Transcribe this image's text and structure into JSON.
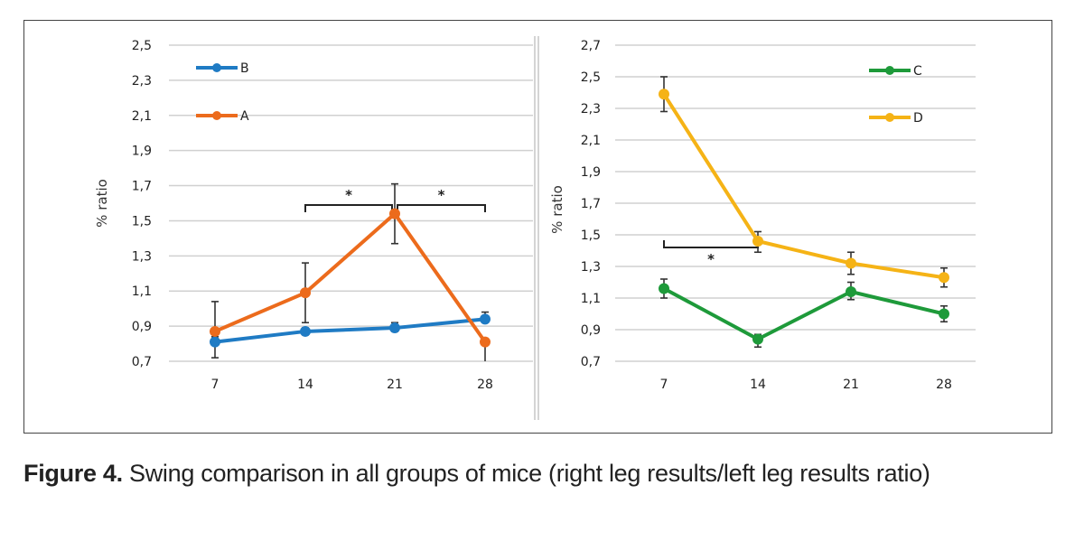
{
  "caption": {
    "label": "Figure 4.",
    "text": " Swing comparison in all groups of mice (right leg results/left leg results ratio)"
  },
  "chart_data": [
    {
      "type": "line",
      "panel": "left",
      "title": "",
      "xlabel": "",
      "ylabel": "% ratio",
      "categories": [
        "7",
        "14",
        "21",
        "28"
      ],
      "yticks": [
        "2,5",
        "2,3",
        "2,1",
        "1,9",
        "1,7",
        "1,5",
        "1,3",
        "1,1",
        "0,9",
        "0,7"
      ],
      "ylim": [
        0.7,
        2.5
      ],
      "grid": true,
      "legend": "top-left",
      "series": [
        {
          "name": "B",
          "color": "#1f7bc4",
          "values": [
            0.81,
            0.87,
            0.89,
            0.94
          ],
          "err_low": [
            0.72,
            0.85,
            0.87,
            0.94
          ],
          "err_high": [
            0.84,
            0.89,
            0.92,
            0.98
          ]
        },
        {
          "name": "A",
          "color": "#ec6b1c",
          "values": [
            0.87,
            1.09,
            1.54,
            0.81
          ],
          "err_low": [
            0.87,
            0.92,
            1.37,
            0.7
          ],
          "err_high": [
            1.04,
            1.26,
            1.71,
            0.81
          ]
        }
      ],
      "significance": [
        {
          "from": "14",
          "to": "21",
          "level": 1.59,
          "label": "*"
        },
        {
          "from": "21",
          "to": "28",
          "level": 1.59,
          "label": "*"
        }
      ]
    },
    {
      "type": "line",
      "panel": "right",
      "title": "",
      "xlabel": "",
      "ylabel": "% ratio",
      "categories": [
        "7",
        "14",
        "21",
        "28"
      ],
      "yticks": [
        "2,7",
        "2,5",
        "2,3",
        "2,1",
        "1,9",
        "1,7",
        "1,5",
        "1,3",
        "1,1",
        "0,9",
        "0,7"
      ],
      "ylim": [
        0.7,
        2.7
      ],
      "grid": true,
      "legend": "top-right",
      "series": [
        {
          "name": "C",
          "color": "#1e9a3a",
          "values": [
            1.16,
            0.84,
            1.14,
            1.0
          ],
          "err_low": [
            1.1,
            0.79,
            1.09,
            0.95
          ],
          "err_high": [
            1.22,
            0.87,
            1.2,
            1.05
          ]
        },
        {
          "name": "D",
          "color": "#f5b316",
          "values": [
            2.39,
            1.46,
            1.32,
            1.23
          ],
          "err_low": [
            2.28,
            1.39,
            1.25,
            1.17
          ],
          "err_high": [
            2.5,
            1.52,
            1.39,
            1.29
          ]
        }
      ],
      "significance": [
        {
          "from": "7",
          "to": "14",
          "level": 1.42,
          "label": "*",
          "direction": "down"
        }
      ]
    }
  ]
}
